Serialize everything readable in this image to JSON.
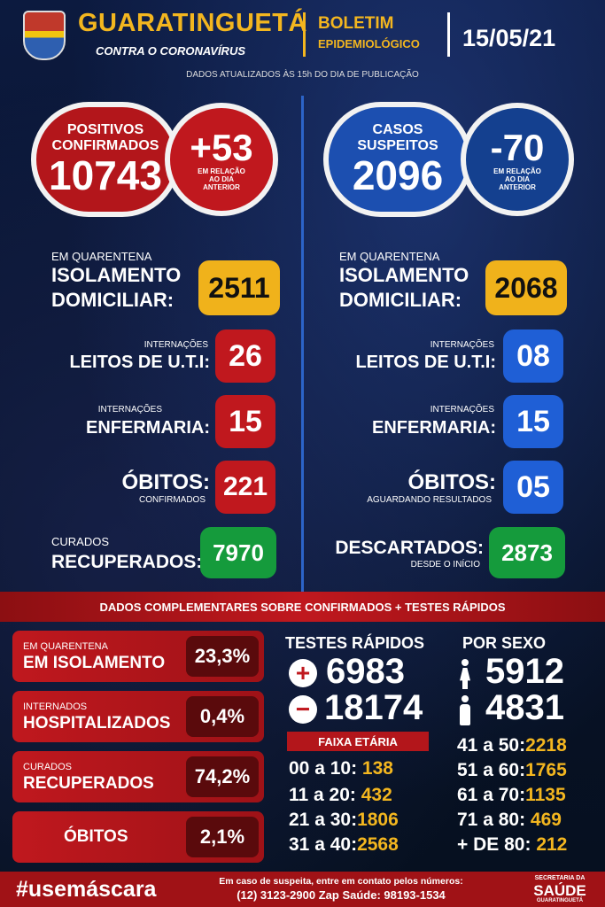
{
  "header": {
    "city": "GUARATINGUETÁ",
    "subtitle": "CONTRA O CORONAVÍRUS",
    "bulletin_1": "BOLETIM",
    "bulletin_2": "EPIDEMIOLÓGICO",
    "date": "15/05/21",
    "updated": "DADOS ATUALIZADOS ÀS 15h DO DIA DE PUBLICAÇÃO"
  },
  "left": {
    "confirmed_label_1": "POSITIVOS",
    "confirmed_label_2": "CONFIRMADOS",
    "confirmed_value": "10743",
    "delta_value": "+53",
    "delta_note_1": "EM RELAÇÃO",
    "delta_note_2": "AO DIA",
    "delta_note_3": "ANTERIOR",
    "quarantine_small": "EM QUARENTENA",
    "isolation_1": "ISOLAMENTO",
    "isolation_2": "DOMICILIAR:",
    "isolation_value": "2511",
    "uti_small": "INTERNAÇÕES",
    "uti_label": "LEITOS DE U.T.I:",
    "uti_value": "26",
    "ward_small": "INTERNAÇÕES",
    "ward_label": "ENFERMARIA:",
    "ward_value": "15",
    "deaths_label": "ÓBITOS:",
    "deaths_small": "CONFIRMADOS",
    "deaths_value": "221",
    "cured_small": "CURADOS",
    "cured_label": "RECUPERADOS:",
    "cured_value": "7970"
  },
  "right": {
    "suspect_label_1": "CASOS",
    "suspect_label_2": "SUSPEITOS",
    "suspect_value": "2096",
    "delta_value": "-70",
    "delta_note_1": "EM RELAÇÃO",
    "delta_note_2": "AO DIA",
    "delta_note_3": "ANTERIOR",
    "quarantine_small": "EM QUARENTENA",
    "isolation_1": "ISOLAMENTO",
    "isolation_2": "DOMICILIAR:",
    "isolation_value": "2068",
    "uti_small": "INTERNAÇÕES",
    "uti_label": "LEITOS DE U.T.I:",
    "uti_value": "08",
    "ward_small": "INTERNAÇÕES",
    "ward_label": "ENFERMARIA:",
    "ward_value": "15",
    "deaths_label": "ÓBITOS:",
    "deaths_small": "AGUARDANDO RESULTADOS",
    "deaths_value": "05",
    "discarded_label": "DESCARTADOS:",
    "discarded_small": "DESDE O INÍCIO",
    "discarded_value": "2873"
  },
  "complement": {
    "band": "DADOS COMPLEMENTARES SOBRE CONFIRMADOS + TESTES RÁPIDOS",
    "boxes": [
      {
        "small": "EM QUARENTENA",
        "big": "EM ISOLAMENTO",
        "pct": "23,3%"
      },
      {
        "small": "INTERNADOS",
        "big": "HOSPITALIZADOS",
        "pct": "0,4%"
      },
      {
        "small": "CURADOS",
        "big": "RECUPERADOS",
        "pct": "74,2%"
      },
      {
        "small": "",
        "big": "ÓBITOS",
        "pct": "2,1%"
      }
    ],
    "tests_title": "TESTES RÁPIDOS",
    "tests_positive": "6983",
    "tests_negative": "18174",
    "sex_title": "POR SEXO",
    "female": "5912",
    "male": "4831",
    "age_title": "FAIXA ETÁRIA",
    "ages_left": [
      {
        "range": "00 a 10:",
        "value": "138"
      },
      {
        "range": "11 a 20:",
        "value": "432"
      },
      {
        "range": "21 a 30:",
        "value": "1806"
      },
      {
        "range": "31 a 40:",
        "value": "2568"
      }
    ],
    "ages_right": [
      {
        "range": "41 a 50:",
        "value": "2218"
      },
      {
        "range": "51 a 60:",
        "value": "1765"
      },
      {
        "range": "61 a 70:",
        "value": "1135"
      },
      {
        "range": "71 a 80:",
        "value": "469"
      },
      {
        "range": "+ DE 80:",
        "value": "212"
      }
    ]
  },
  "footer": {
    "hashtag": "#usemáscara",
    "contact_1": "Em caso de suspeita, entre em contato pelos números:",
    "contact_2": "(12) 3123-2900 Zap Saúde: 98193-1534",
    "sec_1": "SECRETARIA DA",
    "sec_2": "SAÚDE",
    "sec_3": "GUARATINGUETÁ"
  },
  "colors": {
    "red": "#c0181e",
    "blue": "#1f5fd6",
    "gold": "#f0b21b",
    "green": "#159b3c",
    "navy": "#0b1736"
  }
}
